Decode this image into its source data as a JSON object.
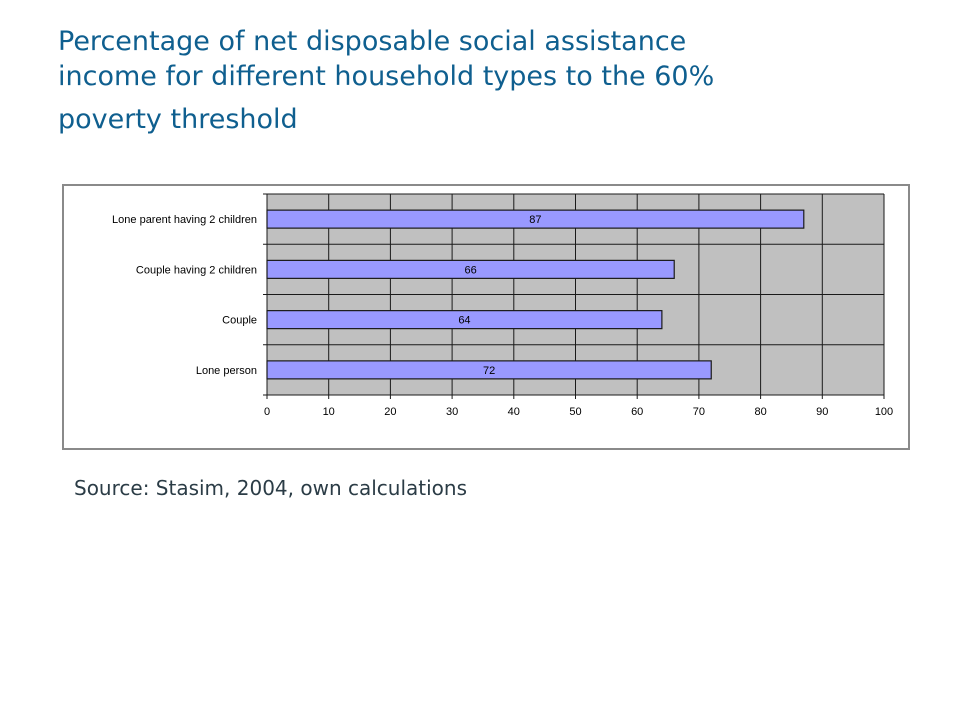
{
  "title": {
    "line1": "Percentage of net disposable social assistance",
    "line2": "income for different household types to the 60%",
    "line3": "poverty threshold"
  },
  "source": "Source: Stasim, 2004, own calculations",
  "colors": {
    "title": "#0f5f8f",
    "bar_fill": "#9999ff",
    "bar_stroke": "#1a1a1a",
    "plot_bg": "#c0c0c0",
    "grid": "#1a1a1a"
  },
  "chart_data": {
    "type": "bar",
    "orientation": "horizontal",
    "categories": [
      "Lone parent having 2 children",
      "Couple having 2 children",
      "Couple",
      "Lone person"
    ],
    "values": [
      87,
      66,
      64,
      72
    ],
    "data_labels": [
      "87",
      "66",
      "64",
      "72"
    ],
    "xlim": [
      0,
      100
    ],
    "x_ticks": [
      0,
      10,
      20,
      30,
      40,
      50,
      60,
      70,
      80,
      90,
      100
    ],
    "x_tick_labels": [
      "0",
      "10",
      "20",
      "30",
      "40",
      "50",
      "60",
      "70",
      "80",
      "90",
      "100"
    ],
    "grid": true,
    "legend": "none"
  }
}
